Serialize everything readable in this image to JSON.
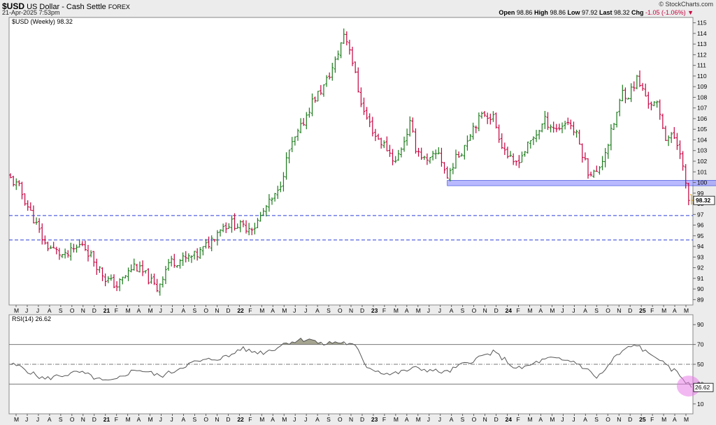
{
  "header": {
    "symbol": "$USD",
    "name": "US Dollar - Cash Settle",
    "exchange": "FOREX",
    "datetime": "21-Apr-2025 7:53pm",
    "brand": "© StockCharts.com",
    "stats": [
      {
        "label": "Open",
        "value": "98.86"
      },
      {
        "label": "High",
        "value": "98.86"
      },
      {
        "label": "Low",
        "value": "97.92"
      },
      {
        "label": "Last",
        "value": "98.32"
      },
      {
        "label": "Chg",
        "value": "-1.05 (-1.06%)",
        "negative": true
      }
    ]
  },
  "colors": {
    "up": "#1a7a1a",
    "down": "#c4003e",
    "rsi": "#555555",
    "accent_blue": "#2b3fd8",
    "zone": "#8080ff",
    "highlight": "#e87ee8",
    "overbought": "#8f8d74"
  },
  "chart_data": [
    {
      "type": "ohlc",
      "title": "$USD (Weekly) 98.32",
      "ylim": [
        88.5,
        115.5
      ],
      "y_ticks": [
        89,
        90,
        91,
        92,
        93,
        94,
        95,
        96,
        97,
        98,
        99,
        100,
        101,
        102,
        103,
        104,
        105,
        106,
        107,
        108,
        109,
        110,
        111,
        112,
        113,
        114,
        115
      ],
      "last_value_label": "98.32",
      "x_labels": [
        "M",
        "J",
        "J",
        "A",
        "S",
        "O",
        "N",
        "D",
        "21",
        "F",
        "M",
        "A",
        "M",
        "J",
        "J",
        "A",
        "S",
        "O",
        "N",
        "D",
        "22",
        "F",
        "M",
        "A",
        "M",
        "J",
        "J",
        "A",
        "S",
        "O",
        "N",
        "D",
        "23",
        "F",
        "M",
        "A",
        "M",
        "J",
        "J",
        "A",
        "S",
        "O",
        "N",
        "D",
        "24",
        "F",
        "M",
        "A",
        "M",
        "J",
        "J",
        "A",
        "S",
        "O",
        "N",
        "D",
        "25",
        "F",
        "M",
        "A",
        "M"
      ],
      "x_labels_bold": [
        "21",
        "22",
        "23",
        "24",
        "25"
      ],
      "horizontal_lines": [
        96.9,
        94.6
      ],
      "support_zone": {
        "from_week": 152,
        "to_week": 247,
        "low": 99.7,
        "high": 100.2
      },
      "keypoints": [
        [
          0,
          100.6
        ],
        [
          4,
          99.5
        ],
        [
          9,
          96.6
        ],
        [
          13,
          94.2
        ],
        [
          20,
          93.0
        ],
        [
          26,
          94.3
        ],
        [
          30,
          92.7
        ],
        [
          34,
          91.0
        ],
        [
          38,
          90.3
        ],
        [
          44,
          92.2
        ],
        [
          48,
          91.3
        ],
        [
          52,
          90.0
        ],
        [
          56,
          92.5
        ],
        [
          62,
          92.8
        ],
        [
          66,
          93.2
        ],
        [
          70,
          94.3
        ],
        [
          74,
          95.8
        ],
        [
          78,
          96.2
        ],
        [
          82,
          95.8
        ],
        [
          86,
          95.9
        ],
        [
          90,
          97.7
        ],
        [
          94,
          99.0
        ],
        [
          98,
          103.0
        ],
        [
          102,
          105.1
        ],
        [
          106,
          107.6
        ],
        [
          110,
          109.0
        ],
        [
          114,
          111.3
        ],
        [
          117,
          114.0
        ],
        [
          119,
          112.7
        ],
        [
          122,
          108.7
        ],
        [
          124,
          106.6
        ],
        [
          128,
          104.4
        ],
        [
          132,
          103.2
        ],
        [
          135,
          101.9
        ],
        [
          138,
          104.0
        ],
        [
          140,
          105.5
        ],
        [
          142,
          103.3
        ],
        [
          146,
          101.8
        ],
        [
          150,
          102.9
        ],
        [
          153,
          100.4
        ],
        [
          155,
          101.8
        ],
        [
          158,
          103.0
        ],
        [
          162,
          105.3
        ],
        [
          166,
          106.5
        ],
        [
          169,
          106.1
        ],
        [
          172,
          103.6
        ],
        [
          176,
          101.6
        ],
        [
          179,
          102.6
        ],
        [
          183,
          104.2
        ],
        [
          187,
          105.8
        ],
        [
          191,
          105.0
        ],
        [
          195,
          105.8
        ],
        [
          198,
          104.4
        ],
        [
          202,
          101.1
        ],
        [
          205,
          100.8
        ],
        [
          209,
          103.7
        ],
        [
          212,
          106.5
        ],
        [
          214,
          108.5
        ],
        [
          216,
          108.2
        ],
        [
          219,
          109.7
        ],
        [
          223,
          107.6
        ],
        [
          226,
          107.2
        ],
        [
          229,
          104.3
        ],
        [
          232,
          104.2
        ],
        [
          234,
          103.1
        ],
        [
          236,
          99.6
        ],
        [
          237,
          98.32
        ]
      ],
      "last_bar": {
        "open": 98.86,
        "high": 98.86,
        "low": 97.92,
        "close": 98.32
      }
    },
    {
      "type": "line",
      "title": "RSI(14) 26.62",
      "ylim": [
        0,
        100
      ],
      "y_ticks": [
        10,
        30,
        50,
        70,
        90
      ],
      "reference_lines": [
        30,
        50,
        70
      ],
      "last_value_label": "26.62",
      "keypoints": [
        [
          0,
          50
        ],
        [
          4,
          47
        ],
        [
          8,
          40
        ],
        [
          12,
          35
        ],
        [
          16,
          38
        ],
        [
          20,
          40
        ],
        [
          24,
          42
        ],
        [
          28,
          38
        ],
        [
          32,
          33
        ],
        [
          36,
          33
        ],
        [
          40,
          40
        ],
        [
          44,
          45
        ],
        [
          48,
          42
        ],
        [
          52,
          38
        ],
        [
          56,
          42
        ],
        [
          60,
          48
        ],
        [
          64,
          52
        ],
        [
          68,
          54
        ],
        [
          72,
          56
        ],
        [
          76,
          58
        ],
        [
          80,
          66
        ],
        [
          84,
          63
        ],
        [
          88,
          62
        ],
        [
          92,
          66
        ],
        [
          96,
          72
        ],
        [
          100,
          74
        ],
        [
          104,
          76
        ],
        [
          108,
          70
        ],
        [
          112,
          72
        ],
        [
          116,
          72
        ],
        [
          120,
          68
        ],
        [
          124,
          48
        ],
        [
          128,
          43
        ],
        [
          132,
          40
        ],
        [
          136,
          42
        ],
        [
          140,
          46
        ],
        [
          144,
          45
        ],
        [
          148,
          43
        ],
        [
          152,
          42
        ],
        [
          156,
          48
        ],
        [
          160,
          53
        ],
        [
          164,
          58
        ],
        [
          168,
          62
        ],
        [
          172,
          55
        ],
        [
          176,
          45
        ],
        [
          180,
          48
        ],
        [
          184,
          53
        ],
        [
          188,
          56
        ],
        [
          192,
          54
        ],
        [
          196,
          53
        ],
        [
          200,
          46
        ],
        [
          204,
          37
        ],
        [
          206,
          41
        ],
        [
          210,
          56
        ],
        [
          214,
          65
        ],
        [
          218,
          70
        ],
        [
          222,
          60
        ],
        [
          225,
          58
        ],
        [
          228,
          48
        ],
        [
          232,
          42
        ],
        [
          235,
          33
        ],
        [
          237,
          26.62
        ]
      ]
    }
  ]
}
